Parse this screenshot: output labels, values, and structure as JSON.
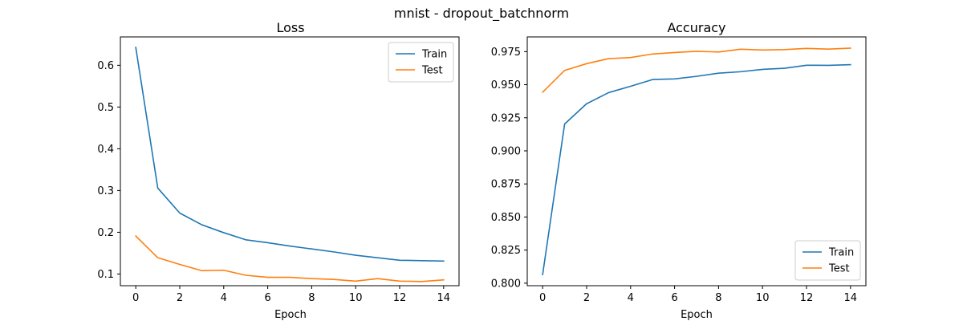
{
  "figure": {
    "suptitle": "mnist - dropout_batchnorm"
  },
  "chart_data": [
    {
      "type": "line",
      "title": "Loss",
      "xlabel": "Epoch",
      "ylabel": "",
      "x": [
        0,
        1,
        2,
        3,
        4,
        5,
        6,
        7,
        8,
        9,
        10,
        11,
        12,
        13,
        14
      ],
      "xlim": [
        -0.7,
        14.7
      ],
      "ylim": [
        0.072,
        0.668
      ],
      "xticks": [
        0,
        2,
        4,
        6,
        8,
        10,
        12,
        14
      ],
      "yticks": [
        0.1,
        0.2,
        0.3,
        0.4,
        0.5,
        0.6
      ],
      "ytick_labels": [
        "0.1",
        "0.2",
        "0.3",
        "0.4",
        "0.5",
        "0.6"
      ],
      "grid": false,
      "legend_position": "top-right",
      "series": [
        {
          "name": "Train",
          "color": "#1f77b4",
          "values": [
            0.643,
            0.306,
            0.246,
            0.218,
            0.199,
            0.182,
            0.175,
            0.167,
            0.16,
            0.153,
            0.145,
            0.139,
            0.133,
            0.132,
            0.131
          ]
        },
        {
          "name": "Test",
          "color": "#ff7f0e",
          "values": [
            0.191,
            0.139,
            0.123,
            0.108,
            0.109,
            0.097,
            0.092,
            0.092,
            0.089,
            0.087,
            0.083,
            0.089,
            0.083,
            0.082,
            0.086
          ]
        }
      ]
    },
    {
      "type": "line",
      "title": "Accuracy",
      "xlabel": "Epoch",
      "ylabel": "",
      "x": [
        0,
        1,
        2,
        3,
        4,
        5,
        6,
        7,
        8,
        9,
        10,
        11,
        12,
        13,
        14
      ],
      "xlim": [
        -0.7,
        14.7
      ],
      "ylim": [
        0.7981,
        0.9861
      ],
      "xticks": [
        0,
        2,
        4,
        6,
        8,
        10,
        12,
        14
      ],
      "yticks": [
        0.8,
        0.825,
        0.85,
        0.875,
        0.9,
        0.925,
        0.95,
        0.975
      ],
      "ytick_labels": [
        "0.800",
        "0.825",
        "0.850",
        "0.875",
        "0.900",
        "0.925",
        "0.950",
        "0.975"
      ],
      "grid": false,
      "legend_position": "bottom-right",
      "series": [
        {
          "name": "Train",
          "color": "#1f77b4",
          "values": [
            0.8065,
            0.9203,
            0.9356,
            0.944,
            0.9488,
            0.9539,
            0.9544,
            0.9563,
            0.9587,
            0.9598,
            0.9616,
            0.9624,
            0.9647,
            0.9646,
            0.9651
          ]
        },
        {
          "name": "Test",
          "color": "#ff7f0e",
          "values": [
            0.9443,
            0.9608,
            0.9659,
            0.9697,
            0.9705,
            0.9732,
            0.9743,
            0.9752,
            0.9747,
            0.9768,
            0.9762,
            0.9765,
            0.9774,
            0.9769,
            0.9776
          ]
        }
      ]
    }
  ]
}
